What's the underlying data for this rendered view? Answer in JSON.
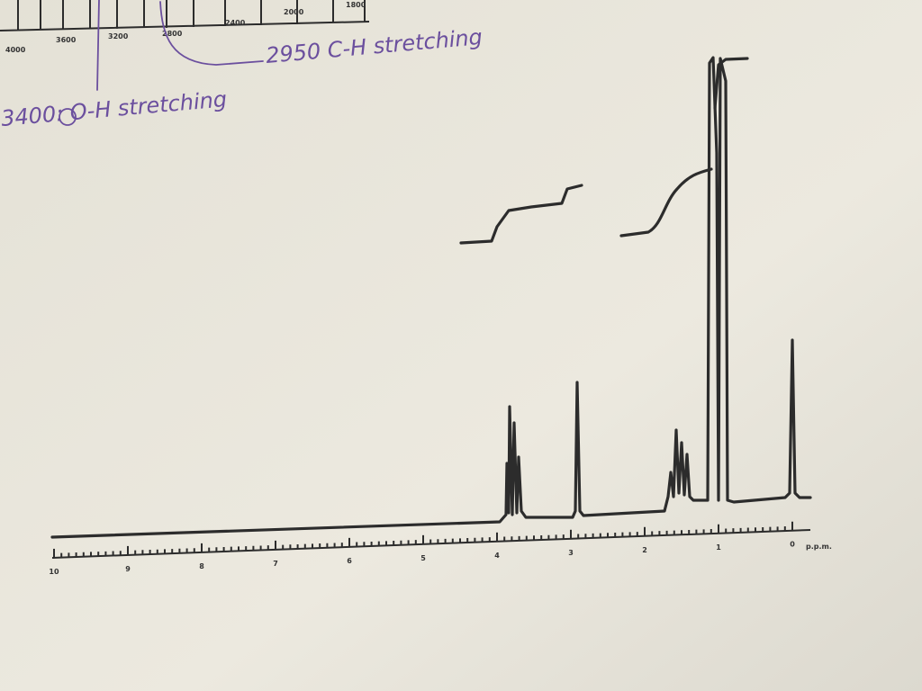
{
  "ir_scale": {
    "labels": [
      "4000",
      "3600",
      "3200",
      "2800",
      "2400",
      "2000",
      "1800"
    ]
  },
  "annotations": [
    "2950 C-H stretching",
    "3400: O-H stretching"
  ],
  "nmr_scale": {
    "labels": [
      "10",
      "9",
      "8",
      "7",
      "6",
      "5",
      "4",
      "3",
      "2",
      "1",
      "0"
    ],
    "unit": "p.p.m."
  }
}
